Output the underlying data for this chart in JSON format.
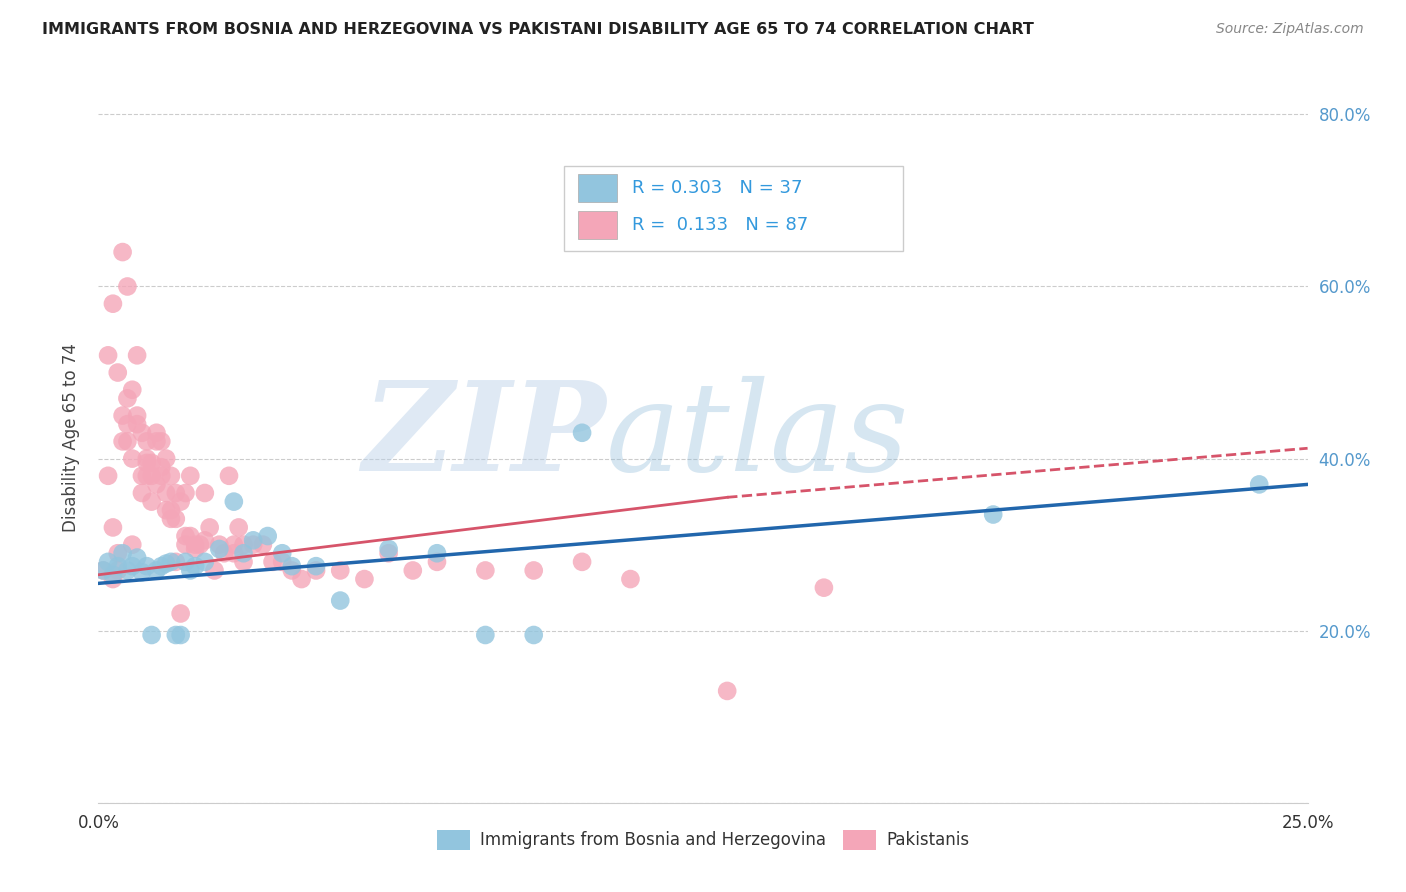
{
  "title": "IMMIGRANTS FROM BOSNIA AND HERZEGOVINA VS PAKISTANI DISABILITY AGE 65 TO 74 CORRELATION CHART",
  "source": "Source: ZipAtlas.com",
  "ylabel": "Disability Age 65 to 74",
  "xlim": [
    0.0,
    0.25
  ],
  "ylim": [
    0.0,
    0.85
  ],
  "x_ticks": [
    0.0,
    0.05,
    0.1,
    0.15,
    0.2,
    0.25
  ],
  "x_tick_labels": [
    "0.0%",
    "",
    "",
    "",
    "",
    "25.0%"
  ],
  "y_ticks": [
    0.0,
    0.2,
    0.4,
    0.6,
    0.8
  ],
  "y_tick_labels_right": [
    "",
    "20.0%",
    "40.0%",
    "60.0%",
    "80.0%"
  ],
  "legend_label_blue": "Immigrants from Bosnia and Herzegovina",
  "legend_label_pink": "Pakistanis",
  "R_blue": 0.303,
  "N_blue": 37,
  "R_pink": 0.133,
  "N_pink": 87,
  "color_blue": "#92c5de",
  "color_pink": "#f4a6b8",
  "line_color_blue": "#2166ac",
  "line_color_pink": "#d6546a",
  "watermark_zip": "ZIP",
  "watermark_atlas": "atlas",
  "background_color": "#ffffff",
  "grid_color": "#cccccc",
  "blue_x": [
    0.001,
    0.002,
    0.003,
    0.004,
    0.005,
    0.006,
    0.007,
    0.008,
    0.009,
    0.01,
    0.011,
    0.012,
    0.013,
    0.014,
    0.015,
    0.016,
    0.017,
    0.018,
    0.019,
    0.02,
    0.022,
    0.025,
    0.028,
    0.03,
    0.032,
    0.035,
    0.038,
    0.04,
    0.045,
    0.05,
    0.06,
    0.07,
    0.08,
    0.09,
    0.1,
    0.185,
    0.24
  ],
  "blue_y": [
    0.27,
    0.28,
    0.265,
    0.275,
    0.29,
    0.27,
    0.275,
    0.285,
    0.268,
    0.275,
    0.195,
    0.27,
    0.275,
    0.278,
    0.28,
    0.195,
    0.195,
    0.28,
    0.27,
    0.275,
    0.28,
    0.295,
    0.35,
    0.29,
    0.305,
    0.31,
    0.29,
    0.275,
    0.275,
    0.235,
    0.295,
    0.29,
    0.195,
    0.195,
    0.43,
    0.335,
    0.37
  ],
  "pink_x": [
    0.001,
    0.002,
    0.002,
    0.003,
    0.003,
    0.004,
    0.004,
    0.005,
    0.005,
    0.006,
    0.006,
    0.007,
    0.007,
    0.008,
    0.008,
    0.009,
    0.009,
    0.01,
    0.01,
    0.011,
    0.011,
    0.012,
    0.012,
    0.013,
    0.013,
    0.014,
    0.014,
    0.015,
    0.015,
    0.016,
    0.016,
    0.017,
    0.018,
    0.019,
    0.02,
    0.021,
    0.022,
    0.023,
    0.025,
    0.027,
    0.028,
    0.029,
    0.03,
    0.032,
    0.034,
    0.036,
    0.038,
    0.04,
    0.042,
    0.045,
    0.05,
    0.055,
    0.06,
    0.065,
    0.07,
    0.08,
    0.09,
    0.1,
    0.11,
    0.13,
    0.004,
    0.005,
    0.006,
    0.007,
    0.008,
    0.009,
    0.01,
    0.011,
    0.012,
    0.013,
    0.015,
    0.016,
    0.017,
    0.018,
    0.019,
    0.02,
    0.022,
    0.024,
    0.026,
    0.028,
    0.03,
    0.003,
    0.006,
    0.01,
    0.014,
    0.018,
    0.15
  ],
  "pink_y": [
    0.27,
    0.38,
    0.52,
    0.32,
    0.58,
    0.5,
    0.29,
    0.64,
    0.45,
    0.42,
    0.47,
    0.48,
    0.3,
    0.52,
    0.45,
    0.38,
    0.36,
    0.4,
    0.42,
    0.35,
    0.38,
    0.37,
    0.43,
    0.38,
    0.42,
    0.36,
    0.4,
    0.34,
    0.38,
    0.28,
    0.36,
    0.22,
    0.36,
    0.38,
    0.3,
    0.3,
    0.36,
    0.32,
    0.3,
    0.38,
    0.3,
    0.32,
    0.3,
    0.3,
    0.3,
    0.28,
    0.28,
    0.27,
    0.26,
    0.27,
    0.27,
    0.26,
    0.29,
    0.27,
    0.28,
    0.27,
    0.27,
    0.28,
    0.26,
    0.13,
    0.27,
    0.42,
    0.44,
    0.4,
    0.44,
    0.43,
    0.395,
    0.395,
    0.42,
    0.39,
    0.33,
    0.33,
    0.35,
    0.31,
    0.31,
    0.295,
    0.305,
    0.27,
    0.29,
    0.29,
    0.28,
    0.26,
    0.6,
    0.38,
    0.34,
    0.3,
    0.25
  ]
}
